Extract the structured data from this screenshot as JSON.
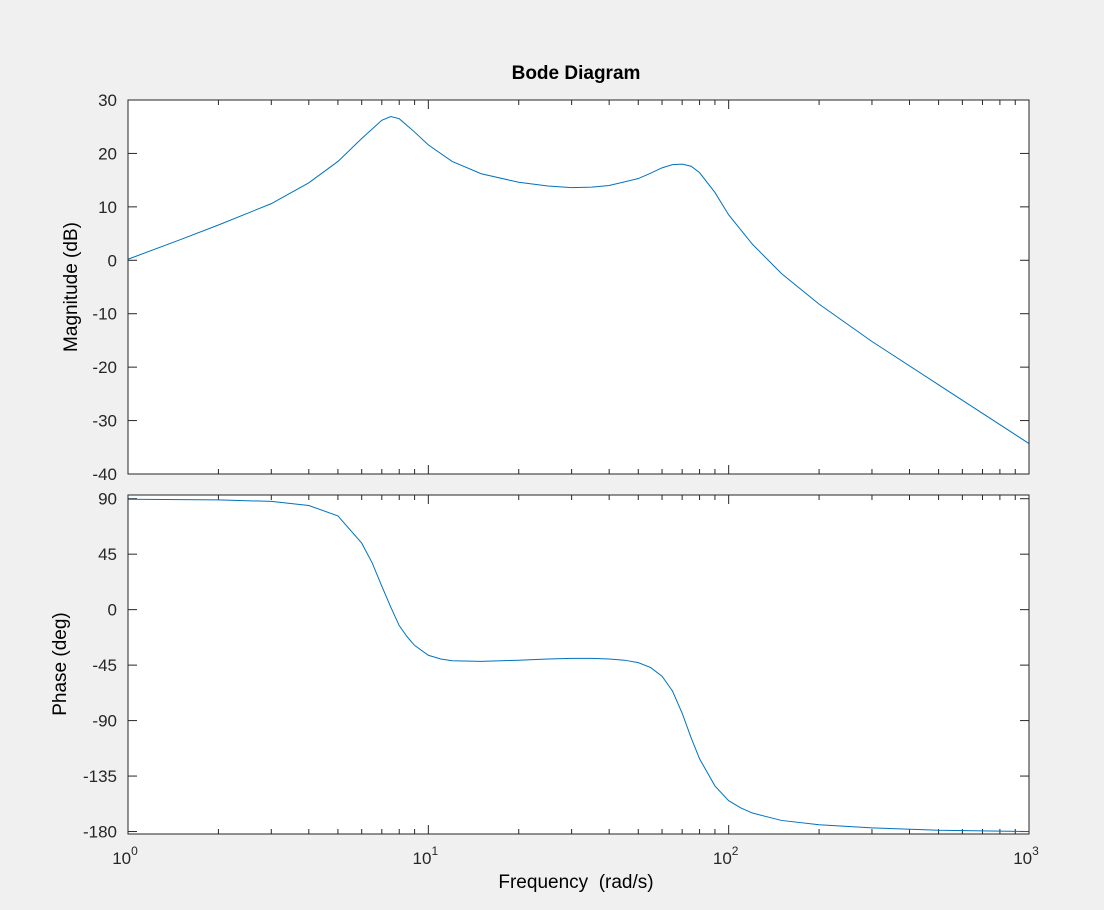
{
  "figure": {
    "background_color": "#f0f0f0",
    "axes_background_color": "#ffffff",
    "axes_edge_color": "#262626",
    "line_color": "#0072bd"
  },
  "chart_data": {
    "type": "line",
    "title": "Bode Diagram",
    "xlabel": "Frequency  (rad/s)",
    "xscale": "log",
    "xlim": [
      1,
      1000
    ],
    "x_ticks": [
      {
        "base": "10",
        "exp": "0"
      },
      {
        "base": "10",
        "exp": "1"
      },
      {
        "base": "10",
        "exp": "2"
      },
      {
        "base": "10",
        "exp": "3"
      }
    ],
    "grid": false,
    "legend": "none",
    "panels": [
      {
        "name": "magnitude",
        "ylabel": "Magnitude (dB)",
        "ylim": [
          -40,
          30
        ],
        "y_ticks": [
          "30",
          "20",
          "10",
          "0",
          "-10",
          "-20",
          "-30",
          "-40"
        ],
        "series": [
          {
            "x": [
              1,
              1.5,
              2,
              3,
              4,
              5,
              6,
              7,
              7.5,
              8,
              9,
              10,
              12,
              15,
              20,
              25,
              30,
              35,
              40,
              50,
              55,
              60,
              65,
              70,
              75,
              80,
              90,
              100,
              120,
              150,
              200,
              300,
              500,
              1000
            ],
            "y": [
              0.2,
              3.9,
              6.6,
              10.6,
              14.5,
              18.5,
              22.8,
              26.2,
              26.9,
              26.5,
              24.0,
              21.6,
              18.5,
              16.2,
              14.6,
              13.9,
              13.6,
              13.7,
              14.0,
              15.3,
              16.3,
              17.3,
              17.9,
              18.0,
              17.6,
              16.4,
              12.7,
              8.5,
              3.0,
              -2.5,
              -8.2,
              -15.2,
              -23.3,
              -34.3
            ]
          }
        ]
      },
      {
        "name": "phase",
        "ylabel": "Phase (deg)",
        "ylim": [
          -182,
          93
        ],
        "y_ticks": [
          "90",
          "45",
          "0",
          "-45",
          "-90",
          "-135",
          "-180"
        ],
        "series": [
          {
            "x": [
              1,
              2,
              3,
              4,
              5,
              6,
              6.5,
              7,
              7.5,
              8,
              8.5,
              9,
              10,
              11,
              12,
              15,
              20,
              25,
              30,
              35,
              40,
              45,
              50,
              55,
              60,
              65,
              70,
              75,
              80,
              90,
              100,
              110,
              120,
              150,
              200,
              300,
              500,
              1000
            ],
            "y": [
              89.5,
              89,
              87.8,
              84.5,
              76,
              54,
              38,
              19,
              2,
              -13,
              -22,
              -29,
              -37,
              -40,
              -41.5,
              -42,
              -41,
              -40,
              -39.5,
              -39.5,
              -40,
              -41,
              -43,
              -47,
              -54,
              -66,
              -84,
              -104,
              -121,
              -143,
              -155,
              -161,
              -165,
              -171,
              -174.5,
              -177,
              -179,
              -180
            ]
          }
        ]
      }
    ]
  }
}
